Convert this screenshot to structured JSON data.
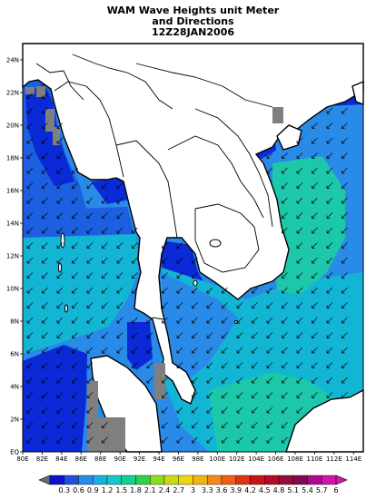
{
  "title": {
    "line1": "WAM Wave Heights unit Meter",
    "line2": "and Directions",
    "line3": "12Z28JAN2006"
  },
  "map": {
    "lon_range": [
      80,
      115
    ],
    "lat_range": [
      0,
      25
    ],
    "x_ticks": [
      "80E",
      "82E",
      "84E",
      "86E",
      "88E",
      "90E",
      "92E",
      "94E",
      "96E",
      "98E",
      "100E",
      "102E",
      "104E",
      "106E",
      "108E",
      "110E",
      "112E",
      "114E"
    ],
    "y_ticks": [
      "EQ",
      "2N",
      "4N",
      "6N",
      "8N",
      "10N",
      "12N",
      "14N",
      "16N",
      "18N",
      "20N",
      "22N",
      "24N"
    ],
    "arrow_direction": "southwest",
    "colors": {
      "land": "#ffffff",
      "coast": "#000000",
      "missing": "#7f7f7f",
      "blue_dark": "#0a2ad7",
      "blue_mid": "#1c5fe0",
      "blue": "#2a8ae8",
      "cyan": "#13b5d5",
      "teal": "#1cc8a9",
      "teal_light": "#28d29b"
    }
  },
  "legend": {
    "labels": [
      "0.3",
      "0.6",
      "0.9",
      "1.2",
      "1.5",
      "1.8",
      "2.1",
      "2.4",
      "2.7",
      "3",
      "3.3",
      "3.6",
      "3.9",
      "4.2",
      "4.5",
      "4.8",
      "5.1",
      "5.4",
      "5.7",
      "6"
    ],
    "colors": [
      "#0a14d0",
      "#1e50e0",
      "#2a8ae8",
      "#18b0e0",
      "#12c8c8",
      "#14d08e",
      "#2ed24a",
      "#8cdc1e",
      "#c8dc14",
      "#f0d414",
      "#f0b414",
      "#f08a14",
      "#ee6014",
      "#e03214",
      "#c81414",
      "#b40a28",
      "#9a0a3c",
      "#800a50",
      "#ac0a8a",
      "#d214ac"
    ]
  }
}
